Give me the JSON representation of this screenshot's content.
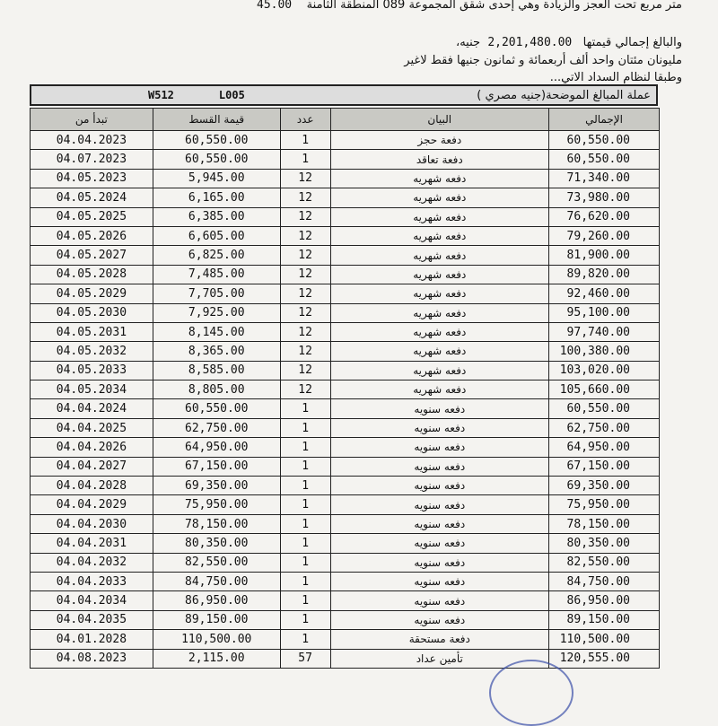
{
  "header": {
    "line1_text": "متر مربع تحت العجز والزيادة وهي إحدى شقق المجموعة 089 المنطقة الثامنة",
    "area": "45.00",
    "line2_prefix": "والبالغ إجمالي قيمتها",
    "total_value": "2,201,480.00",
    "line2_suffix": "جنيه،",
    "line3": "مليونان مئتان واحد ألف أربعمائة و ثمانون جنيها فقط لاغير",
    "line4": "وطبقا لنظام السداد الاتي..."
  },
  "caption": {
    "currency": "عملة المبالغ الموضحة(جنيه مصري )",
    "code1": "W512",
    "code2": "L005"
  },
  "columns": {
    "start": "تبدأ من",
    "installment": "قيمة القسط",
    "count": "عدد",
    "description": "البيان",
    "total": "الإجمالي"
  },
  "rows": [
    {
      "start": "04.04.2023",
      "installment": "60,550.00",
      "count": "1",
      "description": "دفعة حجز",
      "total": "60,550.00"
    },
    {
      "start": "04.07.2023",
      "installment": "60,550.00",
      "count": "1",
      "description": "دفعة تعاقد",
      "total": "60,550.00"
    },
    {
      "start": "04.05.2023",
      "installment": "5,945.00",
      "count": "12",
      "description": "دفعه شهريه",
      "total": "71,340.00"
    },
    {
      "start": "04.05.2024",
      "installment": "6,165.00",
      "count": "12",
      "description": "دفعه شهريه",
      "total": "73,980.00"
    },
    {
      "start": "04.05.2025",
      "installment": "6,385.00",
      "count": "12",
      "description": "دفعه شهريه",
      "total": "76,620.00"
    },
    {
      "start": "04.05.2026",
      "installment": "6,605.00",
      "count": "12",
      "description": "دفعه شهريه",
      "total": "79,260.00"
    },
    {
      "start": "04.05.2027",
      "installment": "6,825.00",
      "count": "12",
      "description": "دفعه شهريه",
      "total": "81,900.00"
    },
    {
      "start": "04.05.2028",
      "installment": "7,485.00",
      "count": "12",
      "description": "دفعه شهريه",
      "total": "89,820.00"
    },
    {
      "start": "04.05.2029",
      "installment": "7,705.00",
      "count": "12",
      "description": "دفعه شهريه",
      "total": "92,460.00"
    },
    {
      "start": "04.05.2030",
      "installment": "7,925.00",
      "count": "12",
      "description": "دفعه شهريه",
      "total": "95,100.00"
    },
    {
      "start": "04.05.2031",
      "installment": "8,145.00",
      "count": "12",
      "description": "دفعه شهريه",
      "total": "97,740.00"
    },
    {
      "start": "04.05.2032",
      "installment": "8,365.00",
      "count": "12",
      "description": "دفعه شهريه",
      "total": "100,380.00"
    },
    {
      "start": "04.05.2033",
      "installment": "8,585.00",
      "count": "12",
      "description": "دفعه شهريه",
      "total": "103,020.00"
    },
    {
      "start": "04.05.2034",
      "installment": "8,805.00",
      "count": "12",
      "description": "دفعه شهريه",
      "total": "105,660.00"
    },
    {
      "start": "04.04.2024",
      "installment": "60,550.00",
      "count": "1",
      "description": "دفعه سنويه",
      "total": "60,550.00"
    },
    {
      "start": "04.04.2025",
      "installment": "62,750.00",
      "count": "1",
      "description": "دفعه سنويه",
      "total": "62,750.00"
    },
    {
      "start": "04.04.2026",
      "installment": "64,950.00",
      "count": "1",
      "description": "دفعه سنويه",
      "total": "64,950.00"
    },
    {
      "start": "04.04.2027",
      "installment": "67,150.00",
      "count": "1",
      "description": "دفعه سنويه",
      "total": "67,150.00"
    },
    {
      "start": "04.04.2028",
      "installment": "69,350.00",
      "count": "1",
      "description": "دفعه سنويه",
      "total": "69,350.00"
    },
    {
      "start": "04.04.2029",
      "installment": "75,950.00",
      "count": "1",
      "description": "دفعه سنويه",
      "total": "75,950.00"
    },
    {
      "start": "04.04.2030",
      "installment": "78,150.00",
      "count": "1",
      "description": "دفعه سنويه",
      "total": "78,150.00"
    },
    {
      "start": "04.04.2031",
      "installment": "80,350.00",
      "count": "1",
      "description": "دفعه سنويه",
      "total": "80,350.00"
    },
    {
      "start": "04.04.2032",
      "installment": "82,550.00",
      "count": "1",
      "description": "دفعه سنويه",
      "total": "82,550.00"
    },
    {
      "start": "04.04.2033",
      "installment": "84,750.00",
      "count": "1",
      "description": "دفعه سنويه",
      "total": "84,750.00"
    },
    {
      "start": "04.04.2034",
      "installment": "86,950.00",
      "count": "1",
      "description": "دفعه سنويه",
      "total": "86,950.00"
    },
    {
      "start": "04.04.2035",
      "installment": "89,150.00",
      "count": "1",
      "description": "دفعه سنويه",
      "total": "89,150.00"
    },
    {
      "start": "04.01.2028",
      "installment": "110,500.00",
      "count": "1",
      "description": "دفعة مستحقة",
      "total": "110,500.00"
    },
    {
      "start": "04.08.2023",
      "installment": "2,115.00",
      "count": "57",
      "description": "تأمين عداد",
      "total": "120,555.00"
    }
  ]
}
